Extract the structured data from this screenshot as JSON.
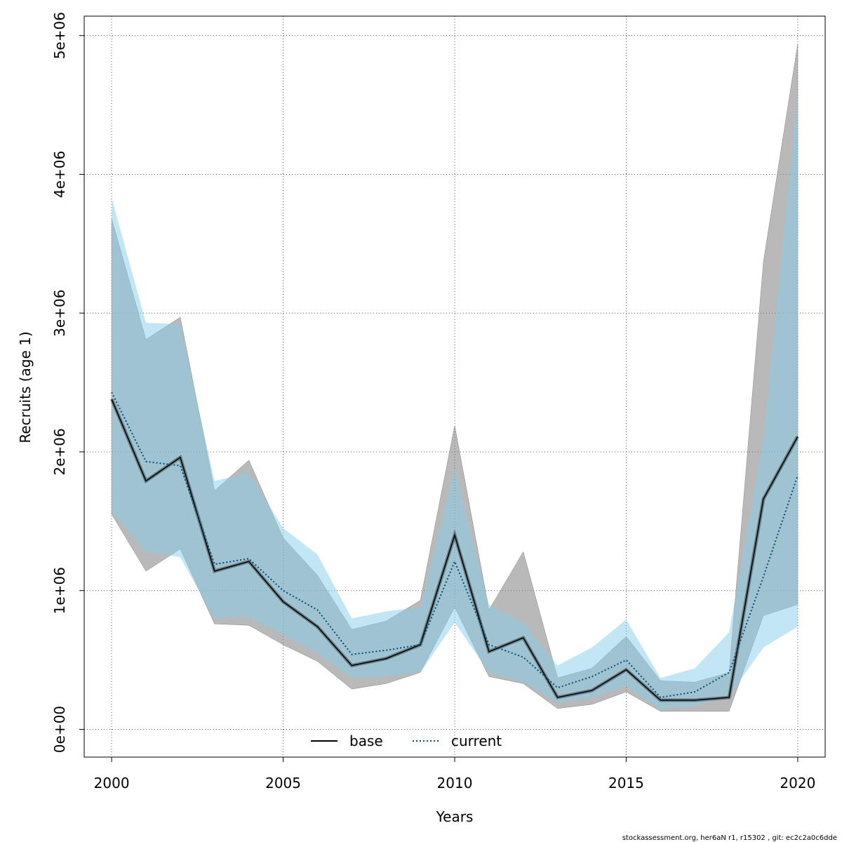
{
  "chart_data": {
    "type": "line",
    "xlabel": "Years",
    "ylabel": "Recruits (age 1)",
    "xlim": [
      1999.2,
      2020.8
    ],
    "ylim": [
      -200000,
      5140000
    ],
    "x_ticks": [
      2000,
      2005,
      2010,
      2015,
      2020
    ],
    "x_tick_labels": [
      "2000",
      "2005",
      "2010",
      "2015",
      "2020"
    ],
    "y_ticks": [
      0,
      1000000,
      2000000,
      3000000,
      4000000,
      5000000
    ],
    "y_tick_labels": [
      "0e+00",
      "1e+06",
      "2e+06",
      "3e+06",
      "4e+06",
      "5e+06"
    ],
    "grid": true,
    "legend_position": "bottom-center",
    "x": [
      2000,
      2001,
      2002,
      2003,
      2004,
      2005,
      2006,
      2007,
      2008,
      2009,
      2010,
      2011,
      2012,
      2013,
      2014,
      2015,
      2016,
      2017,
      2018,
      2019,
      2020
    ],
    "series": [
      {
        "name": "base",
        "line_color": "#000000",
        "band_color": "#808080",
        "dash": "solid",
        "values": [
          2380000,
          1790000,
          1960000,
          1140000,
          1210000,
          920000,
          740000,
          460000,
          510000,
          610000,
          1400000,
          560000,
          660000,
          230000,
          280000,
          430000,
          210000,
          210000,
          230000,
          1660000,
          2110000
        ],
        "upper": [
          3680000,
          2810000,
          2970000,
          1720000,
          1940000,
          1380000,
          1110000,
          720000,
          780000,
          930000,
          2190000,
          860000,
          1280000,
          370000,
          440000,
          670000,
          350000,
          340000,
          410000,
          3370000,
          4940000
        ],
        "lower": [
          1550000,
          1140000,
          1300000,
          760000,
          750000,
          610000,
          490000,
          290000,
          330000,
          410000,
          880000,
          380000,
          330000,
          150000,
          180000,
          270000,
          130000,
          130000,
          130000,
          820000,
          900000
        ]
      },
      {
        "name": "current",
        "line_color": "#004c7a",
        "band_color": "#87ceeb",
        "dash": "dotted",
        "values": [
          2430000,
          1930000,
          1900000,
          1190000,
          1230000,
          1000000,
          860000,
          540000,
          570000,
          610000,
          1210000,
          610000,
          520000,
          300000,
          380000,
          500000,
          230000,
          270000,
          410000,
          1100000,
          1830000
        ],
        "upper": [
          3830000,
          2930000,
          2920000,
          1790000,
          1850000,
          1450000,
          1260000,
          800000,
          850000,
          880000,
          1880000,
          900000,
          770000,
          460000,
          590000,
          790000,
          370000,
          440000,
          700000,
          2100000,
          4560000
        ],
        "lower": [
          1570000,
          1280000,
          1240000,
          800000,
          810000,
          680000,
          550000,
          370000,
          380000,
          410000,
          770000,
          410000,
          340000,
          190000,
          230000,
          310000,
          140000,
          170000,
          240000,
          590000,
          740000
        ]
      }
    ]
  },
  "footer_text": "stockassessment.org, her6aN r1, r15302 , git: ec2c2a0c6dde"
}
